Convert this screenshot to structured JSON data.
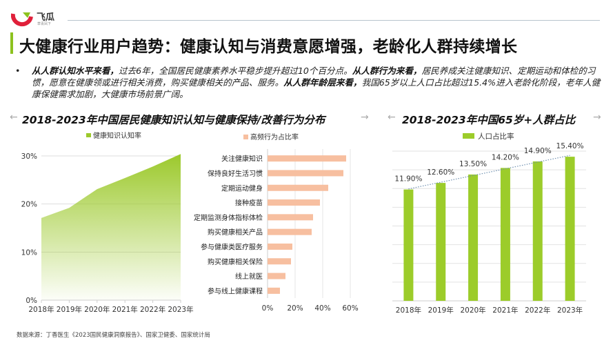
{
  "header": {
    "logo_text": "飞瓜",
    "logo_subtext": "草青凤下"
  },
  "title": "大健康行业用户趋势：健康认知与消费意愿增强，老龄化人群持续增长",
  "summary": [
    {
      "bold": "从人群认知水平来看，",
      "text": "过去6年，全国居民健康素养水平稳步提升超过10个百分点。"
    },
    {
      "bold": "从人群行为来看，",
      "text": "居民养成关注健康知识、定期运动和体检的习惯，愿意在健康领或进行相关消费，购买健康相关的产品、服务。"
    },
    {
      "bold": "从人群年龄层来看，",
      "text": "我国65岁以上人口占比超过15.4%进入老龄化阶段，老年人健康保健需求加剧，大健康市场前景广阔。"
    }
  ],
  "section_titles": [
    "2018-2023年中国居民健康知识认知与健康保持/改善行为分布",
    "2018-2023年中国65岁+人群占比"
  ],
  "arrows": {
    "left": "←",
    "right": "→"
  },
  "footer": "数据来源：丁香医生《2023国民健康洞察报告》、国家卫健委、国家统计局",
  "colors": {
    "accent_green": "#8dc21f",
    "bar_green": "#9ccc2a",
    "bar_orange": "#f7bfa0",
    "trend_line": "#6d8fb0"
  },
  "chart_data": [
    {
      "type": "area",
      "legend": "健康知识认知率",
      "legend_position": "top",
      "categories": [
        "2018年",
        "2019年",
        "2020年",
        "2021年",
        "2022年",
        "2023年"
      ],
      "values": [
        17.1,
        19.2,
        23.1,
        25.4,
        27.8,
        30.4
      ],
      "ylim": [
        0,
        30
      ],
      "yticks": [
        "0%",
        "10%",
        "20%",
        "30%"
      ],
      "grid": true
    },
    {
      "type": "bar",
      "orientation": "horizontal",
      "legend": "高频行为占比率",
      "legend_position": "top",
      "categories": [
        "关注健康知识",
        "保持良好生活习惯",
        "定期运动健身",
        "接种疫苗",
        "定期监测身体指标体检",
        "购买健康相关产品",
        "参与健康类医疗服务",
        "购买健康相关保险",
        "线上就医",
        "参与线上健康课程"
      ],
      "values": [
        57,
        55,
        44,
        38,
        33,
        32,
        18,
        17,
        13,
        9
      ],
      "xlim": [
        0,
        60
      ],
      "xticks": [
        "0%",
        "20%",
        "40%",
        "60%"
      ],
      "grid": true
    },
    {
      "type": "bar",
      "legend": "人口占比率",
      "legend_position": "top",
      "categories": [
        "2018年",
        "2019年",
        "2020年",
        "2021年",
        "2022年",
        "2023年"
      ],
      "values": [
        11.9,
        12.6,
        13.5,
        14.2,
        14.9,
        15.4
      ],
      "data_labels": [
        "11.90%",
        "12.60%",
        "13.50%",
        "14.20%",
        "14.90%",
        "15.40%"
      ],
      "ylim": [
        0,
        16
      ],
      "grid": true,
      "trendline": "dotted linear"
    }
  ]
}
